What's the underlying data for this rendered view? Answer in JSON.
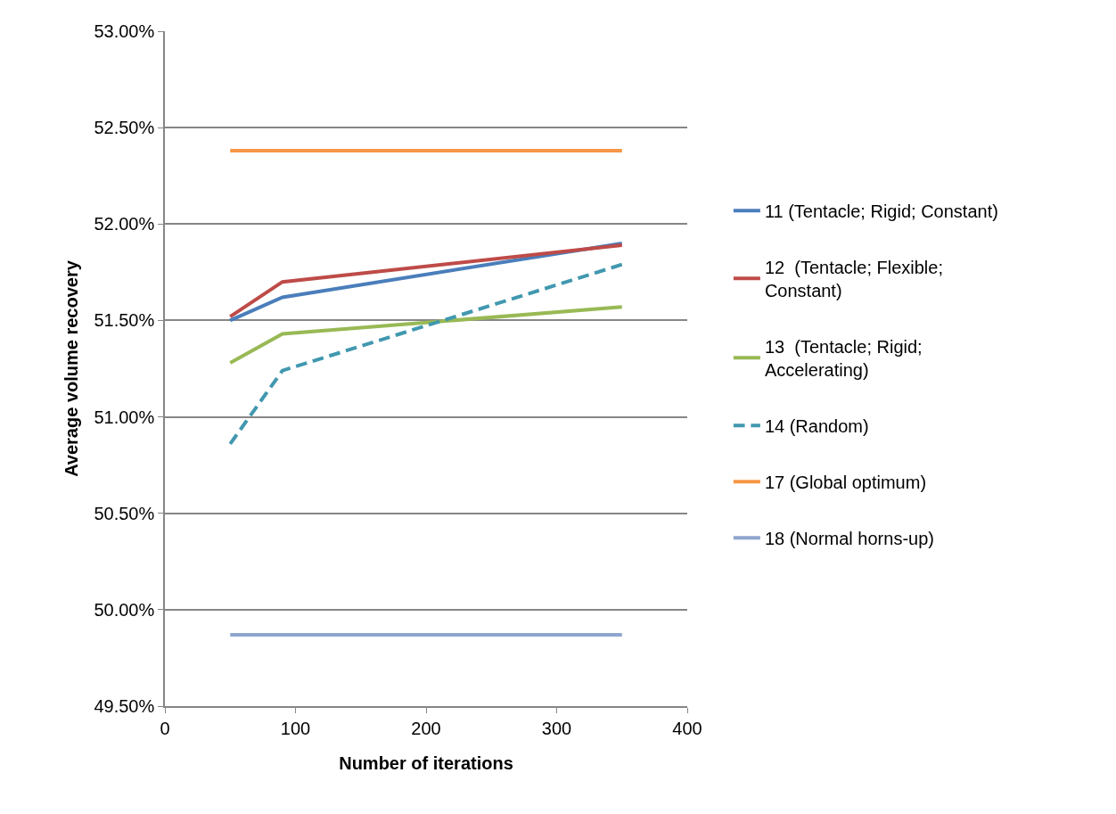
{
  "chart_data": {
    "type": "line",
    "xlabel": "Number of iterations",
    "ylabel": "Average volume recovery",
    "x": [
      50,
      90,
      350
    ],
    "series": [
      {
        "name": "11 (Tentacle; Rigid; Constant)",
        "color": "#4a7ebb",
        "values": [
          51.5,
          51.62,
          51.9
        ]
      },
      {
        "name": "12  (Tentacle; Flexible; Constant)",
        "color": "#be4b48",
        "values": [
          51.52,
          51.7,
          51.89
        ]
      },
      {
        "name": "13  (Tentacle; Rigid; Accelerating)",
        "color": "#98b954",
        "values": [
          51.28,
          51.43,
          51.57
        ]
      },
      {
        "name": "14 (Random)",
        "color": "#4198af",
        "values": [
          50.86,
          51.24,
          51.79
        ],
        "line_style": "dashed"
      },
      {
        "name": "17 (Global optimum)",
        "color": "#f79646",
        "values": [
          52.38,
          52.38,
          52.38
        ]
      },
      {
        "name": "18 (Normal horns-up)",
        "color": "#8ea5cf",
        "values": [
          49.87,
          49.87,
          49.87
        ]
      }
    ],
    "xlim": [
      0,
      400
    ],
    "xticks": [
      0,
      100,
      200,
      300,
      400
    ],
    "ylim": [
      49.5,
      53.0
    ],
    "yticks": [
      {
        "value": 49.5,
        "label": "49.50%"
      },
      {
        "value": 50.0,
        "label": "50.00%"
      },
      {
        "value": 50.5,
        "label": "50.50%"
      },
      {
        "value": 51.0,
        "label": "51.00%"
      },
      {
        "value": 51.5,
        "label": "51.50%"
      },
      {
        "value": 52.0,
        "label": "52.00%"
      },
      {
        "value": 52.5,
        "label": "52.50%"
      },
      {
        "value": 53.0,
        "label": "53.00%"
      }
    ],
    "grid": "y",
    "legend": "right",
    "marker": "none",
    "line_style": "solid"
  }
}
